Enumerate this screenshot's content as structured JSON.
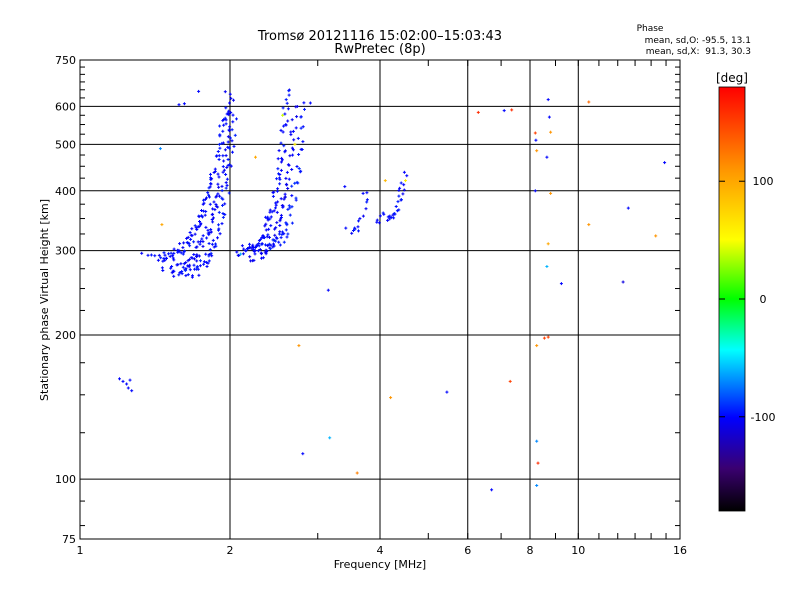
{
  "chart_data": {
    "type": "scatter",
    "title": "Tromsø 20121116 15:02:00–15:03:43",
    "subtitle": "RwPretec (8p)",
    "xlabel": "Frequency [MHz]",
    "ylabel": "Stationary phase Virtual Height [km]",
    "x_scale": "log2",
    "y_scale": "log",
    "xlim": [
      1,
      16
    ],
    "ylim": [
      75,
      750
    ],
    "x_ticks": [
      1,
      2,
      4,
      6,
      8,
      10,
      16
    ],
    "x_tick_labels": [
      "1",
      "2",
      "4",
      "6",
      "8",
      "10",
      "16"
    ],
    "y_ticks": [
      75,
      100,
      200,
      300,
      400,
      500,
      600,
      750
    ],
    "y_tick_labels": [
      "75",
      "100",
      "200",
      "300",
      "400",
      "500",
      "600",
      "750"
    ],
    "grid": true,
    "phase_box": {
      "heading": "Phase",
      "line1": "mean, sd,O: -95.5, 13.1",
      "line2": "mean, sd,X:  91.3, 30.3"
    },
    "colorbar": {
      "label": "[deg]",
      "range": [
        -180,
        180
      ],
      "ticks": [
        100,
        0,
        -100
      ],
      "tick_labels": [
        "100",
        "0",
        "-100"
      ]
    },
    "traces": [
      {
        "x_start": 1.35,
        "x_end": 1.98,
        "h_start": 290,
        "h_end": 640,
        "n": 110,
        "phase": -100
      },
      {
        "x_start": 1.45,
        "x_end": 2.02,
        "h_start": 275,
        "h_end": 620,
        "n": 90,
        "phase": -102
      },
      {
        "x_start": 1.55,
        "x_end": 2.05,
        "h_start": 268,
        "h_end": 560,
        "n": 70,
        "phase": -98
      },
      {
        "x_start": 2.05,
        "x_end": 2.62,
        "h_start": 300,
        "h_end": 650,
        "n": 90,
        "phase": -100
      },
      {
        "x_start": 2.15,
        "x_end": 2.7,
        "h_start": 292,
        "h_end": 600,
        "n": 70,
        "phase": -104
      },
      {
        "x_start": 2.35,
        "x_end": 2.82,
        "h_start": 310,
        "h_end": 620,
        "n": 50,
        "phase": -96
      },
      {
        "x_start": 3.45,
        "x_end": 3.75,
        "h_start": 330,
        "h_end": 390,
        "n": 14,
        "phase": -100
      },
      {
        "x_start": 3.9,
        "x_end": 4.5,
        "h_start": 350,
        "h_end": 430,
        "n": 30,
        "phase": -100
      }
    ],
    "points": [
      {
        "x": 1.2,
        "y": 162,
        "phase": -100
      },
      {
        "x": 1.22,
        "y": 160,
        "phase": -100
      },
      {
        "x": 1.24,
        "y": 158,
        "phase": -100
      },
      {
        "x": 1.25,
        "y": 155,
        "phase": -100
      },
      {
        "x": 1.26,
        "y": 161,
        "phase": -100
      },
      {
        "x": 1.27,
        "y": 153,
        "phase": -100
      },
      {
        "x": 1.45,
        "y": 490,
        "phase": -70
      },
      {
        "x": 1.46,
        "y": 340,
        "phase": 100
      },
      {
        "x": 1.58,
        "y": 605,
        "phase": -100
      },
      {
        "x": 1.62,
        "y": 608,
        "phase": -100
      },
      {
        "x": 1.73,
        "y": 645,
        "phase": -100
      },
      {
        "x": 2.1,
        "y": 295,
        "phase": -60
      },
      {
        "x": 2.25,
        "y": 470,
        "phase": 100
      },
      {
        "x": 2.7,
        "y": 500,
        "phase": 60
      },
      {
        "x": 2.55,
        "y": 575,
        "phase": 40
      },
      {
        "x": 2.9,
        "y": 610,
        "phase": -100
      },
      {
        "x": 2.75,
        "y": 190,
        "phase": 110
      },
      {
        "x": 2.8,
        "y": 113,
        "phase": -100
      },
      {
        "x": 3.15,
        "y": 248,
        "phase": -100
      },
      {
        "x": 3.17,
        "y": 122,
        "phase": -60
      },
      {
        "x": 3.4,
        "y": 408,
        "phase": -100
      },
      {
        "x": 3.6,
        "y": 103,
        "phase": 120
      },
      {
        "x": 3.7,
        "y": 395,
        "phase": -100
      },
      {
        "x": 4.1,
        "y": 420,
        "phase": 90
      },
      {
        "x": 4.2,
        "y": 148,
        "phase": 110
      },
      {
        "x": 4.5,
        "y": 420,
        "phase": 60
      },
      {
        "x": 5.45,
        "y": 152,
        "phase": -100
      },
      {
        "x": 6.3,
        "y": 583,
        "phase": 160
      },
      {
        "x": 6.7,
        "y": 95,
        "phase": -100
      },
      {
        "x": 7.1,
        "y": 588,
        "phase": -100
      },
      {
        "x": 7.3,
        "y": 160,
        "phase": 150
      },
      {
        "x": 7.35,
        "y": 590,
        "phase": 160
      },
      {
        "x": 8.2,
        "y": 528,
        "phase": 150
      },
      {
        "x": 8.22,
        "y": 510,
        "phase": -100
      },
      {
        "x": 8.25,
        "y": 485,
        "phase": 110
      },
      {
        "x": 8.2,
        "y": 400,
        "phase": -100
      },
      {
        "x": 8.25,
        "y": 190,
        "phase": 110
      },
      {
        "x": 8.25,
        "y": 120,
        "phase": -70
      },
      {
        "x": 8.3,
        "y": 108,
        "phase": 160
      },
      {
        "x": 8.25,
        "y": 97,
        "phase": -70
      },
      {
        "x": 8.7,
        "y": 620,
        "phase": -100
      },
      {
        "x": 8.75,
        "y": 570,
        "phase": -100
      },
      {
        "x": 8.8,
        "y": 530,
        "phase": 110
      },
      {
        "x": 8.65,
        "y": 470,
        "phase": -100
      },
      {
        "x": 8.8,
        "y": 395,
        "phase": 110
      },
      {
        "x": 8.7,
        "y": 310,
        "phase": 100
      },
      {
        "x": 8.65,
        "y": 278,
        "phase": -60
      },
      {
        "x": 8.55,
        "y": 197,
        "phase": 150
      },
      {
        "x": 8.7,
        "y": 198,
        "phase": 150
      },
      {
        "x": 9.25,
        "y": 256,
        "phase": -100
      },
      {
        "x": 10.5,
        "y": 613,
        "phase": 130
      },
      {
        "x": 10.5,
        "y": 340,
        "phase": 110
      },
      {
        "x": 12.3,
        "y": 258,
        "phase": -110
      },
      {
        "x": 12.6,
        "y": 368,
        "phase": -100
      },
      {
        "x": 14.3,
        "y": 322,
        "phase": 110
      },
      {
        "x": 14.9,
        "y": 458,
        "phase": -100
      }
    ]
  }
}
